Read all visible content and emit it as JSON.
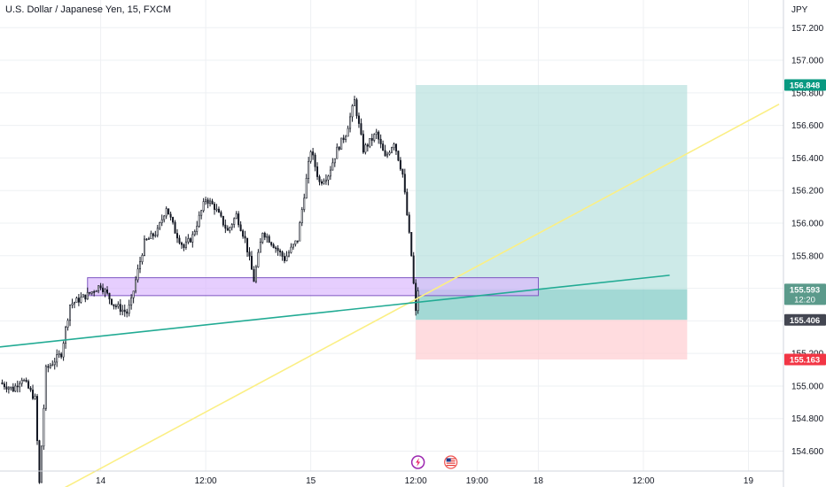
{
  "header": {
    "symbol_title": "U.S. Dollar / Japanese Yen, 15, FXCM",
    "currency": "JPY"
  },
  "colors": {
    "bull": "#26a69a",
    "bear": "#ef5350",
    "candle": "#131722",
    "grid": "#eef0f3",
    "profit_zone": "#b2dfdb",
    "loss_zone": "#ffcdd2",
    "support_zone": "#d8b4fe",
    "yellow_line": "#fbef84",
    "teal_line": "#22ab94",
    "target_tag": "#089981",
    "stop_tag": "#f23645",
    "entry_tag": "#434651",
    "last_tag": "#5b9a8b"
  },
  "icons": [
    "lightning-event-icon",
    "us-flag-event-icon"
  ],
  "chart_data": {
    "type": "candlestick",
    "title": "U.S. Dollar / Japanese Yen, 15, FXCM",
    "ylim": [
      154.38,
      157.37
    ],
    "y_ticks": [
      "157.200",
      "157.000",
      "156.800",
      "156.600",
      "156.400",
      "156.200",
      "156.000",
      "155.800",
      "155.600",
      "155.400",
      "155.200",
      "155.000",
      "154.800",
      "154.600"
    ],
    "x_ticks": [
      "14",
      "12:00",
      "15",
      "12:00",
      "19:00",
      "18",
      "12:00",
      "19"
    ],
    "x_tick_bars": [
      0,
      48,
      96,
      144,
      172,
      200,
      248,
      296
    ],
    "x_range_bars": [
      -46,
      312
    ],
    "grid": true,
    "close_series": [
      {
        "bar": -46,
        "price": 155.02
      },
      {
        "bar": -40,
        "price": 154.98
      },
      {
        "bar": -36,
        "price": 155.05
      },
      {
        "bar": -30,
        "price": 154.92
      },
      {
        "bar": -28,
        "price": 154.4
      },
      {
        "bar": -25,
        "price": 155.1
      },
      {
        "bar": -18,
        "price": 155.2
      },
      {
        "bar": -14,
        "price": 155.5
      },
      {
        "bar": -6,
        "price": 155.56
      },
      {
        "bar": 0,
        "price": 155.62
      },
      {
        "bar": 6,
        "price": 155.5
      },
      {
        "bar": 12,
        "price": 155.45
      },
      {
        "bar": 14,
        "price": 155.52
      },
      {
        "bar": 16,
        "price": 155.65
      },
      {
        "bar": 20,
        "price": 155.88
      },
      {
        "bar": 26,
        "price": 155.95
      },
      {
        "bar": 30,
        "price": 156.1
      },
      {
        "bar": 34,
        "price": 155.95
      },
      {
        "bar": 38,
        "price": 155.85
      },
      {
        "bar": 42,
        "price": 155.92
      },
      {
        "bar": 48,
        "price": 156.15
      },
      {
        "bar": 52,
        "price": 156.1
      },
      {
        "bar": 58,
        "price": 155.95
      },
      {
        "bar": 62,
        "price": 156.05
      },
      {
        "bar": 66,
        "price": 155.9
      },
      {
        "bar": 70,
        "price": 155.65
      },
      {
        "bar": 74,
        "price": 155.95
      },
      {
        "bar": 80,
        "price": 155.85
      },
      {
        "bar": 84,
        "price": 155.78
      },
      {
        "bar": 90,
        "price": 155.9
      },
      {
        "bar": 96,
        "price": 156.45
      },
      {
        "bar": 100,
        "price": 156.25
      },
      {
        "bar": 104,
        "price": 156.3
      },
      {
        "bar": 108,
        "price": 156.45
      },
      {
        "bar": 112,
        "price": 156.55
      },
      {
        "bar": 116,
        "price": 156.75
      },
      {
        "bar": 120,
        "price": 156.45
      },
      {
        "bar": 126,
        "price": 156.55
      },
      {
        "bar": 130,
        "price": 156.4
      },
      {
        "bar": 134,
        "price": 156.5
      },
      {
        "bar": 138,
        "price": 156.3
      },
      {
        "bar": 140,
        "price": 156.05
      },
      {
        "bar": 142,
        "price": 155.8
      },
      {
        "bar": 144,
        "price": 155.45
      },
      {
        "bar": 145,
        "price": 155.59
      }
    ],
    "support_zone": {
      "bar_from": -6,
      "bar_to": 200,
      "price_top": 155.665,
      "price_bottom": 155.555
    },
    "trendlines": [
      {
        "name": "yellow-trendline",
        "from": {
          "bar": -20,
          "price": 154.35
        },
        "to": {
          "bar": 310,
          "price": 156.73
        }
      },
      {
        "name": "teal-trendline",
        "from": {
          "bar": -46,
          "price": 155.24
        },
        "to": {
          "bar": 260,
          "price": 155.68
        }
      }
    ],
    "position": {
      "bar_from": 144,
      "bar_to": 268,
      "target": 156.848,
      "entry": 155.406,
      "stop": 155.163,
      "current": 155.593
    },
    "price_tags": [
      {
        "name": "target-price-tag",
        "text": "156.848",
        "price": 156.848,
        "color": "#089981"
      },
      {
        "name": "last-price-tag",
        "text": "155.593",
        "price": 155.593,
        "color": "#5b9a8b",
        "countdown": "12:20"
      },
      {
        "name": "entry-price-tag",
        "text": "155.406",
        "price": 155.406,
        "color": "#434651"
      },
      {
        "name": "stop-price-tag",
        "text": "155.163",
        "price": 155.163,
        "color": "#f23645"
      }
    ],
    "event_markers": [
      {
        "name": "lightning-event-icon",
        "bar": 145
      },
      {
        "name": "us-flag-event-icon",
        "bar": 160
      }
    ]
  }
}
